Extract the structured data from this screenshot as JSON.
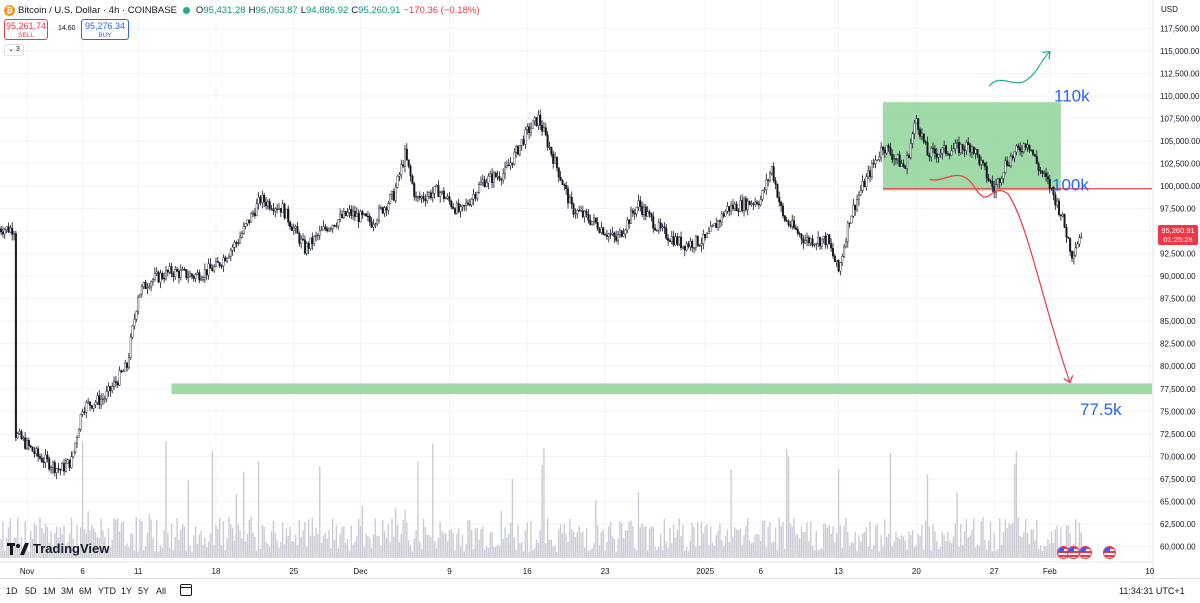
{
  "header": {
    "symbol": "Bitcoin / U.S. Dollar · 4h · COINBASE",
    "open_label": "O",
    "open": "95,431.28",
    "high_label": "H",
    "high": "96,063.87",
    "low_label": "L",
    "low": "94,886.92",
    "close_label": "C",
    "close": "95,260.91",
    "change": "−170.36 (−0.18%)"
  },
  "trade": {
    "sell_price": "95,261.74",
    "sell_label": "SELL",
    "spread": "14.60",
    "buy_price": "95,276.34",
    "buy_label": "BUY"
  },
  "indicator_count": "3",
  "currency": "USD",
  "current_price": {
    "price": "95,260.91",
    "countdown": "01:25:28"
  },
  "logo_text": "TradingView",
  "timeframes": [
    "1D",
    "5D",
    "1M",
    "3M",
    "6M",
    "YTD",
    "1Y",
    "5Y",
    "All"
  ],
  "clock": "11:34:31 UTC+1",
  "icons": {
    "coin": "bitcoin-icon",
    "calendar": "calendar-icon",
    "flags": "us-flag-icon",
    "status": "market-status-icon"
  },
  "colors": {
    "up": "#089981",
    "down": "#f23645",
    "zone": "#8fd49a",
    "annotation_blue": "#2962ff",
    "annotation_red": "#f23645",
    "annotation_green": "#22ab94"
  },
  "chart_data": {
    "type": "candlestick",
    "interval": "4h",
    "y_axis": {
      "ylim": [
        58000,
        120000
      ],
      "ticks": [
        "117,500.00",
        "115,000.00",
        "112,500.00",
        "110,000.00",
        "107,500.00",
        "105,000.00",
        "102,500.00",
        "100,000.00",
        "97,500.00",
        "95,000.00",
        "92,500.00",
        "90,000.00",
        "87,500.00",
        "85,000.00",
        "82,500.00",
        "80,000.00",
        "77,500.00",
        "75,000.00",
        "72,500.00",
        "70,000.00",
        "67,500.00",
        "65,000.00",
        "62,500.00",
        "60,000.00"
      ]
    },
    "x_axis": {
      "ticks": [
        "Nov",
        "6",
        "11",
        "18",
        "25",
        "Dec",
        "9",
        "16",
        "23",
        "2025",
        "6",
        "13",
        "20",
        "27",
        "Feb",
        "10"
      ]
    },
    "price_path": [
      [
        "2024-10-31",
        72500
      ],
      [
        "2024-11-02",
        70000
      ],
      [
        "2024-11-04",
        68500
      ],
      [
        "2024-11-05",
        69500
      ],
      [
        "2024-11-06",
        75500
      ],
      [
        "2024-11-08",
        76500
      ],
      [
        "2024-11-10",
        80000
      ],
      [
        "2024-11-11",
        88000
      ],
      [
        "2024-11-12",
        89500
      ],
      [
        "2024-11-14",
        90500
      ],
      [
        "2024-11-16",
        90000
      ],
      [
        "2024-11-18",
        91000
      ],
      [
        "2024-11-20",
        94000
      ],
      [
        "2024-11-22",
        98500
      ],
      [
        "2024-11-24",
        97500
      ],
      [
        "2024-11-26",
        93000
      ],
      [
        "2024-11-28",
        95500
      ],
      [
        "2024-11-30",
        97000
      ],
      [
        "2024-12-02",
        96000
      ],
      [
        "2024-12-04",
        99000
      ],
      [
        "2024-12-05",
        103500
      ],
      [
        "2024-12-06",
        98500
      ],
      [
        "2024-12-08",
        99500
      ],
      [
        "2024-12-10",
        97000
      ],
      [
        "2024-12-12",
        100500
      ],
      [
        "2024-12-14",
        101500
      ],
      [
        "2024-12-16",
        106000
      ],
      [
        "2024-12-17",
        107500
      ],
      [
        "2024-12-19",
        101000
      ],
      [
        "2024-12-20",
        97500
      ],
      [
        "2024-12-22",
        96000
      ],
      [
        "2024-12-24",
        94000
      ],
      [
        "2024-12-26",
        98000
      ],
      [
        "2024-12-28",
        95000
      ],
      [
        "2024-12-30",
        93500
      ],
      [
        "2025-01-01",
        94000
      ],
      [
        "2025-01-03",
        97500
      ],
      [
        "2025-01-06",
        98500
      ],
      [
        "2025-01-07",
        102000
      ],
      [
        "2025-01-08",
        96500
      ],
      [
        "2025-01-10",
        94000
      ],
      [
        "2025-01-12",
        94000
      ],
      [
        "2025-01-13",
        90500
      ],
      [
        "2025-01-14",
        96500
      ],
      [
        "2025-01-15",
        99500
      ],
      [
        "2025-01-17",
        104500
      ],
      [
        "2025-01-19",
        102000
      ],
      [
        "2025-01-20",
        107500
      ],
      [
        "2025-01-21",
        103500
      ],
      [
        "2025-01-23",
        104000
      ],
      [
        "2025-01-25",
        104500
      ],
      [
        "2025-01-27",
        99500
      ],
      [
        "2025-01-28",
        102500
      ],
      [
        "2025-01-30",
        105000
      ],
      [
        "2025-01-31",
        102000
      ],
      [
        "2025-02-01",
        100000
      ],
      [
        "2025-02-02",
        97000
      ],
      [
        "2025-02-03",
        92500
      ],
      [
        "2025-02-04",
        95261
      ]
    ],
    "volume": "histogram under price (no axis)",
    "annotations": [
      {
        "type": "rectangle",
        "from": "2025-01-17",
        "to": "2025-02-02",
        "y_range": [
          99500,
          109300
        ],
        "color": "#8fd49a",
        "label": "110k"
      },
      {
        "type": "horizontal_line",
        "y": 99700,
        "color": "#f23645",
        "label": "100k"
      },
      {
        "type": "rectangle",
        "from": "2024-11-14",
        "to": "2025-02-14",
        "y_range": [
          76900,
          78100
        ],
        "color": "#8fd49a",
        "label": "77.5k"
      },
      {
        "type": "arrow",
        "direction": "up",
        "color": "#22ab94"
      },
      {
        "type": "arrow",
        "direction": "down",
        "color": "#f23645"
      }
    ]
  }
}
